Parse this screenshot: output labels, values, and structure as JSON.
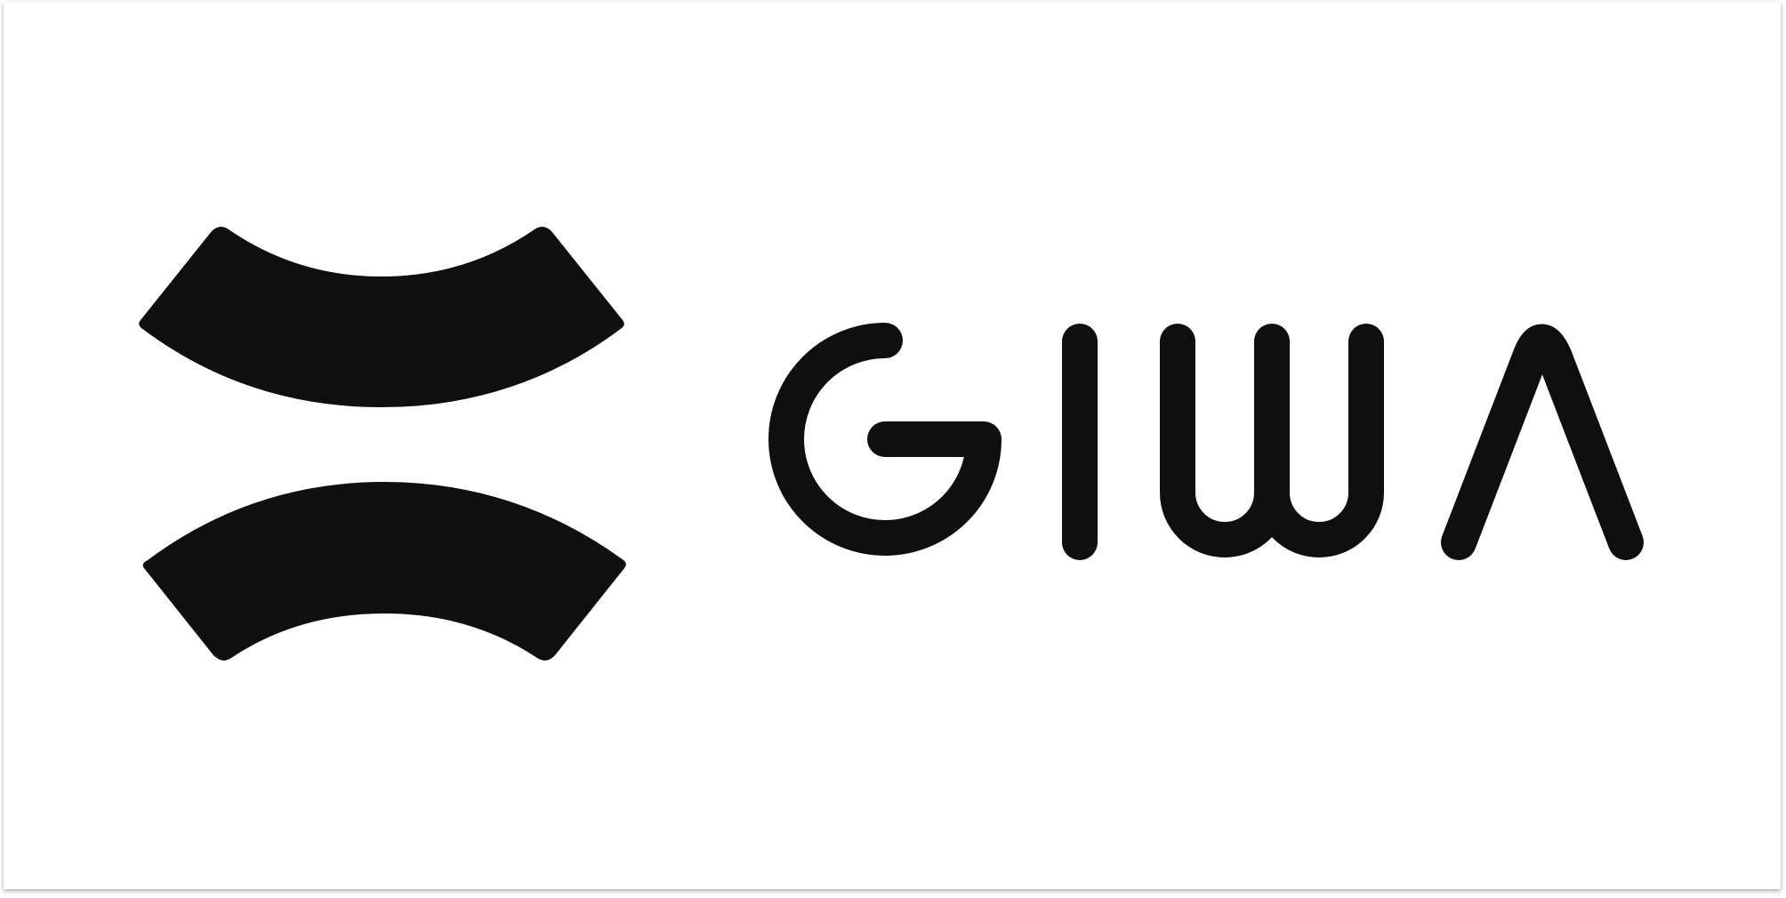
{
  "brand": {
    "name": "GIWA",
    "mark_icon": "stacked-arcs-emblem-icon",
    "colors": {
      "ink": "#0f0f0f",
      "background": "#ffffff"
    }
  }
}
